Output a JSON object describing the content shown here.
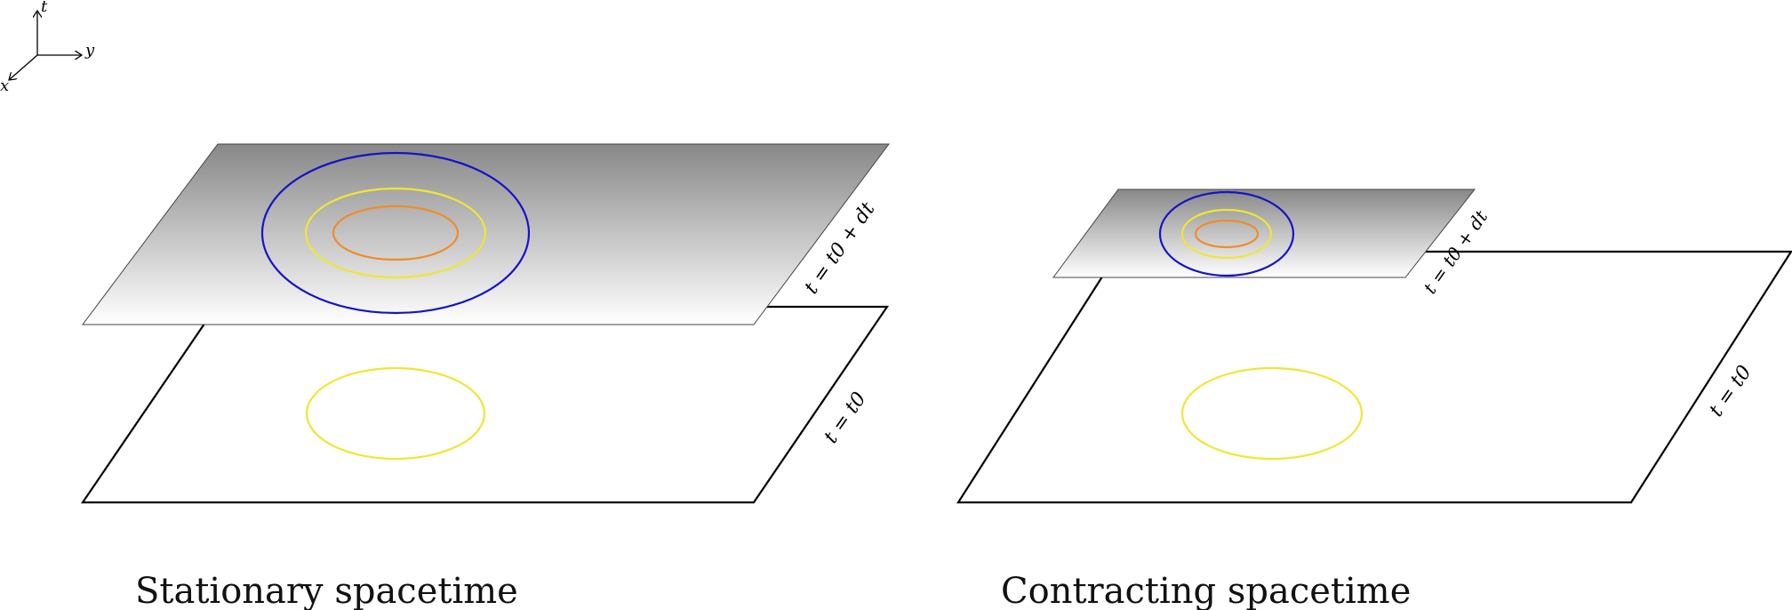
{
  "axes": {
    "t_label": "t",
    "y_label": "y",
    "x_label": "x"
  },
  "panels": [
    {
      "caption": "Stationary spacetime",
      "lower_plane_label": "t = t0",
      "upper_plane_label": "t = t0 + dt"
    },
    {
      "caption": "Contracting spacetime",
      "lower_plane_label": "t = t0",
      "upper_plane_label": "t = t0 + dt"
    }
  ],
  "colors": {
    "outer_contour": "#1414c8",
    "middle_contour": "#f0e632",
    "inner_contour": "#f08c28",
    "plane_edge": "#000000"
  }
}
